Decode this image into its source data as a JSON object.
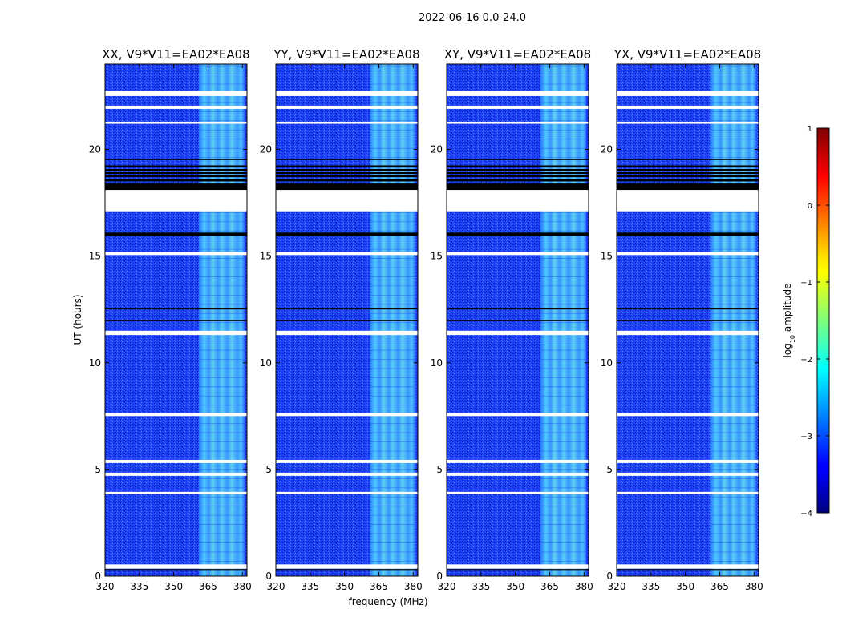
{
  "figure": {
    "suptitle": "2022-06-16 0.0-24.0"
  },
  "chart_data": {
    "type": "heatmap",
    "xlabel": "frequency (MHz)",
    "ylabel": "UT (hours)",
    "xlim": [
      320,
      382
    ],
    "ylim": [
      0,
      24
    ],
    "x_ticks": [
      "320",
      "335",
      "350",
      "365",
      "380"
    ],
    "y_ticks": [
      "0",
      "5",
      "10",
      "15",
      "20"
    ],
    "colorbar": {
      "label_prefix": "log",
      "label_sub": "10",
      "label_suffix": " amplitude",
      "range": [
        -4,
        1
      ],
      "ticks": [
        "−4",
        "−3",
        "−2",
        "−1",
        "0",
        "1"
      ],
      "colormap": "jet"
    },
    "signal_band_mhz": [
      361,
      381
    ],
    "blanked_ut_hours": [
      [
        0.35,
        0.55
      ],
      [
        17.1,
        18.1
      ],
      [
        22.5,
        22.75
      ],
      [
        21.9,
        22.05
      ],
      [
        21.2,
        21.3
      ],
      [
        15.05,
        15.2
      ],
      [
        11.3,
        11.5
      ],
      [
        7.5,
        7.65
      ],
      [
        5.3,
        5.45
      ],
      [
        4.7,
        4.85
      ],
      [
        3.85,
        3.95
      ]
    ],
    "flagged_ut_hours": [
      [
        18.1,
        18.4
      ],
      [
        18.5,
        18.6
      ],
      [
        18.7,
        18.78
      ],
      [
        18.85,
        18.93
      ],
      [
        19.0,
        19.08
      ],
      [
        19.15,
        19.25
      ],
      [
        19.5,
        19.55
      ],
      [
        15.95,
        16.1
      ],
      [
        12.5,
        12.55
      ],
      [
        11.95,
        12.0
      ],
      [
        0.25,
        0.33
      ]
    ],
    "panels": [
      {
        "title": "XX, V9*V11=EA02*EA08"
      },
      {
        "title": "YY, V9*V11=EA02*EA08"
      },
      {
        "title": "XY, V9*V11=EA02*EA08"
      },
      {
        "title": "YX, V9*V11=EA02*EA08"
      }
    ]
  }
}
